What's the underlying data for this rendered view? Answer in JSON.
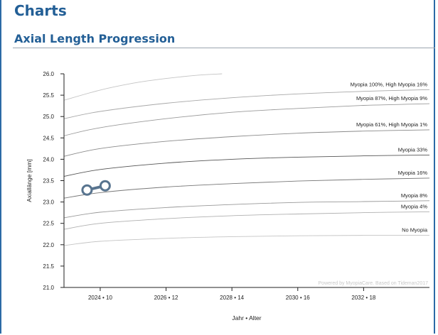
{
  "page": {
    "heading": "Charts",
    "subheading": "Axial Length Progression"
  },
  "chart_data": {
    "type": "line",
    "xlabel": "Jahr • Alter",
    "ylabel": "Axiallänge [mm]",
    "xlim": [
      2022.9,
      2034
    ],
    "ylim": [
      21.0,
      26.0
    ],
    "y_ticks": [
      "21.0",
      "21.5",
      "22.0",
      "22.5",
      "23.0",
      "23.5",
      "24.0",
      "24.5",
      "25.0",
      "25.5",
      "26.0"
    ],
    "x_ticks": [
      {
        "year": 2024,
        "label": "2024 • 10"
      },
      {
        "year": 2026,
        "label": "2026 • 12"
      },
      {
        "year": 2028,
        "label": "2028 • 14"
      },
      {
        "year": 2030,
        "label": "2030 • 16"
      },
      {
        "year": 2032,
        "label": "2032 • 18"
      }
    ],
    "grid": false,
    "reference_curves": [
      {
        "label": "",
        "color": "#c4c4c4",
        "x": [
          2022.9,
          2024,
          2025,
          2026,
          2027,
          2027.7
        ],
        "y": [
          25.38,
          25.62,
          25.78,
          25.89,
          25.97,
          26.0
        ]
      },
      {
        "label": "Myopia 100%, High Myopia 16%",
        "color": "#a8a8a8",
        "x": [
          2022.9,
          2024,
          2026,
          2028,
          2030,
          2032,
          2034
        ],
        "y": [
          24.95,
          25.12,
          25.31,
          25.44,
          25.53,
          25.59,
          25.63
        ]
      },
      {
        "label": "Myopia 87%, High Myopia 9%",
        "color": "#9a9a9a",
        "x": [
          2022.9,
          2024,
          2026,
          2028,
          2030,
          2032,
          2034
        ],
        "y": [
          24.55,
          24.74,
          24.95,
          25.1,
          25.19,
          25.26,
          25.3
        ]
      },
      {
        "label": "Myopia 61%, High Myopia 1%",
        "color": "#8a8a8a",
        "x": [
          2022.9,
          2024,
          2026,
          2028,
          2030,
          2032,
          2034
        ],
        "y": [
          24.07,
          24.25,
          24.42,
          24.53,
          24.61,
          24.66,
          24.69
        ]
      },
      {
        "label": "Myopia 33%",
        "color": "#555555",
        "x": [
          2022.9,
          2024,
          2026,
          2028,
          2030,
          2032,
          2034
        ],
        "y": [
          23.6,
          23.76,
          23.91,
          24.0,
          24.05,
          24.08,
          24.1
        ]
      },
      {
        "label": "Myopia 16%",
        "color": "#777777",
        "x": [
          2022.9,
          2024,
          2026,
          2028,
          2030,
          2032,
          2034
        ],
        "y": [
          23.09,
          23.22,
          23.35,
          23.43,
          23.49,
          23.53,
          23.56
        ]
      },
      {
        "label": "Myopia 8%",
        "color": "#999999",
        "x": [
          2022.9,
          2024,
          2026,
          2028,
          2030,
          2032,
          2034
        ],
        "y": [
          22.63,
          22.76,
          22.87,
          22.94,
          22.99,
          23.01,
          23.03
        ]
      },
      {
        "label": "Myopia 4%",
        "color": "#b0b0b0",
        "x": [
          2022.9,
          2024,
          2026,
          2028,
          2030,
          2032,
          2034
        ],
        "y": [
          22.36,
          22.5,
          22.61,
          22.68,
          22.72,
          22.75,
          22.77
        ]
      },
      {
        "label": "No Myopia",
        "color": "#c4c4c4",
        "x": [
          2022.9,
          2024,
          2026,
          2028,
          2030,
          2032,
          2034
        ],
        "y": [
          21.98,
          22.08,
          22.15,
          22.19,
          22.21,
          22.22,
          22.22
        ]
      }
    ],
    "measurements": {
      "label": "",
      "color": "#58748f",
      "x": [
        2023.6,
        2024.15
      ],
      "y": [
        23.28,
        23.38
      ]
    },
    "watermark": "Powered by MyopiaCare. Based on Tideman2017"
  }
}
